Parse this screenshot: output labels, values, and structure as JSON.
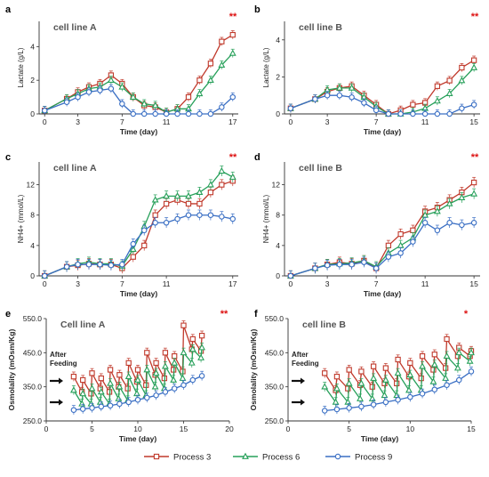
{
  "colors": {
    "process3": "#c0392b",
    "process6": "#27a05a",
    "process9": "#3a6fc4"
  },
  "legend": [
    {
      "name": "Process 3",
      "marker": "square",
      "color": "#c0392b"
    },
    {
      "name": "Process 6",
      "marker": "triangle",
      "color": "#27a05a"
    },
    {
      "name": "Process 9",
      "marker": "circle",
      "color": "#3a6fc4"
    }
  ],
  "chart_data": [
    {
      "panel": "a",
      "title": "cell line A",
      "type": "line",
      "xlabel": "Time (day)",
      "ylabel": "Lactate (g/L)",
      "xlim": [
        -0.5,
        17.5
      ],
      "ylim": [
        0,
        5.5
      ],
      "xticks": [
        0,
        3,
        7,
        11,
        17
      ],
      "yticks": [
        0,
        2,
        4
      ],
      "significance": "**",
      "series": [
        {
          "name": "Process 3",
          "x": [
            0,
            2,
            3,
            4,
            5,
            6,
            7,
            8,
            9,
            10,
            11,
            12,
            13,
            14,
            15,
            16,
            17
          ],
          "y": [
            0.2,
            0.9,
            1.3,
            1.6,
            1.8,
            2.3,
            1.8,
            1.0,
            0.5,
            0.4,
            0.1,
            0.3,
            1.0,
            2.0,
            3.0,
            4.3,
            4.7
          ]
        },
        {
          "name": "Process 6",
          "x": [
            0,
            2,
            3,
            4,
            5,
            6,
            7,
            8,
            9,
            10,
            11,
            12,
            13,
            14,
            15,
            16,
            17
          ],
          "y": [
            0.2,
            0.9,
            1.2,
            1.5,
            1.6,
            2.0,
            1.6,
            1.0,
            0.6,
            0.5,
            0.1,
            0.3,
            0.3,
            1.2,
            2.0,
            2.9,
            3.6
          ]
        },
        {
          "name": "Process 9",
          "x": [
            0,
            2,
            3,
            4,
            5,
            6,
            7,
            8,
            9,
            10,
            11,
            12,
            13,
            14,
            15,
            16,
            17
          ],
          "y": [
            0.2,
            0.7,
            1.0,
            1.3,
            1.4,
            1.5,
            0.6,
            0.0,
            0.0,
            0.0,
            0.0,
            0.0,
            0.0,
            0.0,
            0.0,
            0.4,
            1.0
          ]
        }
      ]
    },
    {
      "panel": "b",
      "title": "cell line B",
      "type": "line",
      "xlabel": "Time (day)",
      "ylabel": "Lactate (g/L)",
      "xlim": [
        -0.5,
        15.5
      ],
      "ylim": [
        0,
        5
      ],
      "xticks": [
        0,
        3,
        7,
        11,
        15
      ],
      "yticks": [
        0,
        2,
        4
      ],
      "significance": "**",
      "series": [
        {
          "name": "Process 3",
          "x": [
            0,
            2,
            3,
            4,
            5,
            6,
            7,
            8,
            9,
            10,
            11,
            12,
            13,
            14,
            15
          ],
          "y": [
            0.3,
            0.8,
            1.2,
            1.4,
            1.5,
            1.0,
            0.5,
            0.0,
            0.2,
            0.5,
            0.6,
            1.5,
            1.8,
            2.5,
            2.9
          ]
        },
        {
          "name": "Process 6",
          "x": [
            0,
            2,
            3,
            4,
            5,
            6,
            7,
            8,
            9,
            10,
            11,
            12,
            13,
            14,
            15
          ],
          "y": [
            0.3,
            0.8,
            1.3,
            1.4,
            1.4,
            0.9,
            0.4,
            0.0,
            0.0,
            0.1,
            0.3,
            0.7,
            1.1,
            1.8,
            2.5
          ]
        },
        {
          "name": "Process 9",
          "x": [
            0,
            2,
            3,
            4,
            5,
            6,
            7,
            8,
            9,
            10,
            11,
            12,
            13,
            14,
            15
          ],
          "y": [
            0.3,
            0.8,
            1.0,
            1.0,
            0.9,
            0.6,
            0.2,
            0.0,
            0.0,
            0.0,
            0.0,
            0.0,
            0.0,
            0.3,
            0.5
          ]
        }
      ]
    },
    {
      "panel": "c",
      "title": "cell line A",
      "type": "line",
      "xlabel": "Time (day)",
      "ylabel": "NH4+ (mmol/L)",
      "xlim": [
        -0.5,
        17.5
      ],
      "ylim": [
        0,
        15
      ],
      "xticks": [
        0,
        3,
        7,
        11,
        17
      ],
      "yticks": [
        0,
        4,
        8,
        12
      ],
      "significance": "**",
      "series": [
        {
          "name": "Process 3",
          "x": [
            0,
            2,
            3,
            4,
            5,
            6,
            7,
            8,
            9,
            10,
            11,
            12,
            13,
            14,
            15,
            16,
            17
          ],
          "y": [
            0,
            1.2,
            1.4,
            1.6,
            1.5,
            1.5,
            1.0,
            2.5,
            4.0,
            8.0,
            9.5,
            10.0,
            9.5,
            9.5,
            11.0,
            12.0,
            12.5
          ]
        },
        {
          "name": "Process 6",
          "x": [
            0,
            2,
            3,
            4,
            5,
            6,
            7,
            8,
            9,
            10,
            11,
            12,
            13,
            14,
            15,
            16,
            17
          ],
          "y": [
            0,
            1.2,
            1.6,
            1.8,
            1.6,
            1.6,
            1.3,
            3.5,
            6.5,
            10.0,
            10.5,
            10.5,
            10.5,
            11.0,
            12.0,
            13.8,
            13.0
          ]
        },
        {
          "name": "Process 9",
          "x": [
            0,
            2,
            3,
            4,
            5,
            6,
            7,
            8,
            9,
            10,
            11,
            12,
            13,
            14,
            15,
            16,
            17
          ],
          "y": [
            0,
            1.2,
            1.5,
            1.5,
            1.5,
            1.4,
            1.5,
            4.2,
            6.0,
            7.0,
            7.0,
            7.5,
            8.0,
            8.0,
            8.0,
            7.8,
            7.5
          ]
        }
      ]
    },
    {
      "panel": "d",
      "title": "cell line B",
      "type": "line",
      "xlabel": "Time (day)",
      "ylabel": "NH4+ (mmol/L)",
      "xlim": [
        -0.5,
        15.5
      ],
      "ylim": [
        0,
        15
      ],
      "xticks": [
        0,
        3,
        7,
        11,
        15
      ],
      "yticks": [
        0,
        4,
        8,
        12
      ],
      "significance": "**",
      "series": [
        {
          "name": "Process 3",
          "x": [
            0,
            2,
            3,
            4,
            5,
            6,
            7,
            8,
            9,
            10,
            11,
            12,
            13,
            14,
            15
          ],
          "y": [
            0,
            1.0,
            1.5,
            1.8,
            1.6,
            2.0,
            1.0,
            4.0,
            5.5,
            6.0,
            8.5,
            9.0,
            10.0,
            11.0,
            12.3
          ]
        },
        {
          "name": "Process 6",
          "x": [
            0,
            2,
            3,
            4,
            5,
            6,
            7,
            8,
            9,
            10,
            11,
            12,
            13,
            14,
            15
          ],
          "y": [
            0,
            1.0,
            1.5,
            1.6,
            1.7,
            2.0,
            1.2,
            3.0,
            4.0,
            5.0,
            8.0,
            8.5,
            9.5,
            10.3,
            10.8
          ]
        },
        {
          "name": "Process 9",
          "x": [
            0,
            2,
            3,
            4,
            5,
            6,
            7,
            8,
            9,
            10,
            11,
            12,
            13,
            14,
            15
          ],
          "y": [
            0,
            1.0,
            1.4,
            1.5,
            1.5,
            1.8,
            1.0,
            2.5,
            3.0,
            4.5,
            7.0,
            6.0,
            7.0,
            6.7,
            7.0
          ]
        }
      ]
    },
    {
      "panel": "e",
      "title": "Cell line A",
      "type": "line",
      "xlabel": "Time (day)",
      "ylabel": "Osmolality (mOsm/Kg)",
      "xlim": [
        0,
        20
      ],
      "ylim": [
        250,
        550
      ],
      "xticks": [
        0,
        5,
        10,
        15,
        20
      ],
      "yticks": [
        250.0,
        350.0,
        450.0,
        550.0
      ],
      "yticklabels": [
        "250.0",
        "350.0",
        "450.0",
        "550.0"
      ],
      "significance": "**",
      "annotation": "After Feeding",
      "series": [
        {
          "name": "Process 3",
          "x": [
            3,
            3.9,
            4,
            4.9,
            5,
            5.9,
            6,
            6.9,
            7,
            7.9,
            8,
            8.9,
            9,
            9.9,
            10,
            10.9,
            11,
            11.9,
            12,
            12.9,
            13,
            13.9,
            14,
            14.9,
            15,
            15.9,
            16,
            16.9,
            17
          ],
          "y": [
            380,
            335,
            370,
            330,
            390,
            345,
            375,
            335,
            400,
            350,
            385,
            345,
            420,
            365,
            400,
            355,
            450,
            385,
            420,
            375,
            450,
            400,
            440,
            395,
            530,
            460,
            490,
            455,
            500
          ]
        },
        {
          "name": "Process 6",
          "x": [
            3,
            3.9,
            4,
            4.9,
            5,
            5.9,
            6,
            6.9,
            7,
            7.9,
            8,
            8.9,
            9,
            9.9,
            10,
            10.9,
            11,
            11.9,
            12,
            12.9,
            13,
            13.9,
            14,
            14.9,
            15,
            15.9,
            16,
            16.9,
            17
          ],
          "y": [
            340,
            300,
            330,
            300,
            345,
            305,
            335,
            300,
            360,
            315,
            350,
            310,
            380,
            330,
            370,
            325,
            400,
            350,
            390,
            345,
            410,
            370,
            420,
            375,
            450,
            420,
            460,
            435,
            465
          ]
        },
        {
          "name": "Process 9",
          "x": [
            3,
            4,
            5,
            6,
            7,
            8,
            9,
            10,
            11,
            12,
            13,
            14,
            15,
            16,
            17
          ],
          "y": [
            282,
            285,
            288,
            292,
            295,
            300,
            305,
            312,
            318,
            325,
            335,
            345,
            355,
            370,
            382
          ]
        }
      ]
    },
    {
      "panel": "f",
      "title": "cell line B",
      "type": "line",
      "xlabel": "Time (day)",
      "ylabel": "Osmolality (mOsm/Kg)",
      "xlim": [
        0,
        15
      ],
      "ylim": [
        250,
        550
      ],
      "xticks": [
        0,
        5,
        10,
        15
      ],
      "yticks": [
        250.0,
        350.0,
        450.0,
        550.0
      ],
      "yticklabels": [
        "250.0",
        "350.0",
        "450.0",
        "550.0"
      ],
      "significance": "*",
      "annotation": "After Feeding",
      "series": [
        {
          "name": "Process 3",
          "x": [
            3,
            3.9,
            4,
            4.9,
            5,
            5.9,
            6,
            6.9,
            7,
            7.9,
            8,
            8.9,
            9,
            9.9,
            10,
            10.9,
            11,
            11.9,
            12,
            12.9,
            13,
            13.9,
            14,
            14.9,
            15
          ],
          "y": [
            390,
            340,
            380,
            345,
            400,
            355,
            395,
            350,
            410,
            360,
            405,
            360,
            430,
            380,
            420,
            375,
            440,
            400,
            445,
            405,
            490,
            440,
            465,
            440,
            455
          ]
        },
        {
          "name": "Process 6",
          "x": [
            3,
            3.9,
            4,
            4.9,
            5,
            5.9,
            6,
            6.9,
            7,
            7.9,
            8,
            8.9,
            9,
            9.9,
            10,
            10.9,
            11,
            11.9,
            12,
            12.9,
            13,
            13.9,
            14,
            14.9,
            15
          ],
          "y": [
            350,
            305,
            345,
            305,
            360,
            315,
            360,
            315,
            375,
            325,
            370,
            325,
            390,
            340,
            385,
            340,
            410,
            365,
            415,
            375,
            440,
            405,
            450,
            425,
            450
          ]
        },
        {
          "name": "Process 9",
          "x": [
            3,
            4,
            5,
            6,
            7,
            8,
            9,
            10,
            11,
            12,
            13,
            14,
            15
          ],
          "y": [
            280,
            284,
            288,
            292,
            298,
            305,
            312,
            320,
            330,
            342,
            355,
            370,
            395
          ]
        }
      ]
    }
  ]
}
